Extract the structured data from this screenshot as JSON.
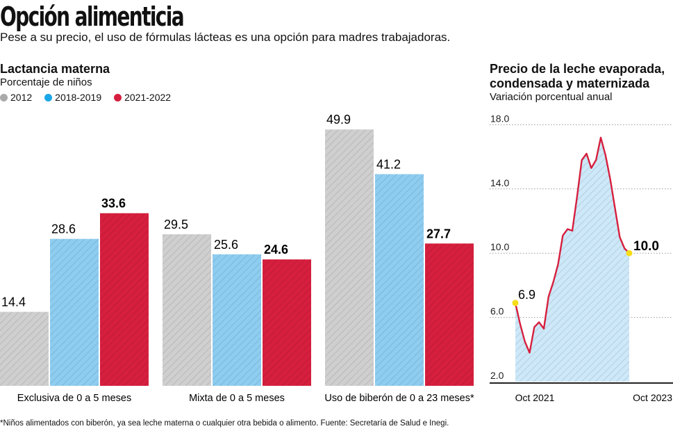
{
  "header": {
    "title": "Opción alimenticia",
    "subtitle": "Pese a su precio, el uso de fórmulas lácteas es una opción para madres trabajadoras."
  },
  "footnote": "*Niños alimentados con biberón, ya sea leche materna o cualquier otra bebida o alimento. Fuente: Secretaría de Salud e Inegi.",
  "chart_data": [
    {
      "type": "bar",
      "title": "Lactancia materna",
      "subtitle": "Porcentaje de niños",
      "categories": [
        "Exclusiva de 0 a 5 meses",
        "Mixta de 0 a 5 meses",
        "Uso de biberón de 0 a 23 meses*"
      ],
      "series": [
        {
          "name": "2012",
          "color": "#cfcfcf",
          "values": [
            14.4,
            29.5,
            49.9
          ]
        },
        {
          "name": "2018-2019",
          "color": "#8ecdf0",
          "values": [
            28.6,
            25.6,
            41.2
          ]
        },
        {
          "name": "2021-2022",
          "color": "#d61f3e",
          "values": [
            33.6,
            24.6,
            27.7
          ]
        }
      ],
      "ylim": [
        0,
        50
      ],
      "legend": "top-left",
      "grid": false,
      "labels": [
        [
          "14.4",
          "29.5",
          "49.9"
        ],
        [
          "28.6",
          "25.6",
          "41.2"
        ],
        [
          "33.6",
          "24.6",
          "27.7"
        ]
      ]
    },
    {
      "type": "area",
      "title": "Precio de la leche evaporada, condensada y maternizada",
      "subtitle": "Variación porcentual anual",
      "x_ticks": [
        "Oct 2021",
        "Oct 2023"
      ],
      "y_ticks": [
        "2.0",
        "6.0",
        "10.0",
        "14.0",
        "18.0"
      ],
      "ylim": [
        2,
        18
      ],
      "grid": true,
      "line_color": "#d61f3e",
      "fill_color": "#cde8f8",
      "marker_color": "#f5dd1a",
      "values": [
        6.9,
        5.6,
        4.5,
        3.8,
        5.4,
        5.7,
        5.3,
        7.3,
        8.2,
        9.3,
        11.1,
        11.5,
        11.4,
        13.5,
        15.8,
        16.2,
        15.3,
        15.8,
        17.2,
        16.1,
        14.6,
        12.8,
        11.0,
        10.3,
        10.0
      ],
      "annotations": {
        "first": "6.9",
        "last": "10.0"
      }
    }
  ]
}
